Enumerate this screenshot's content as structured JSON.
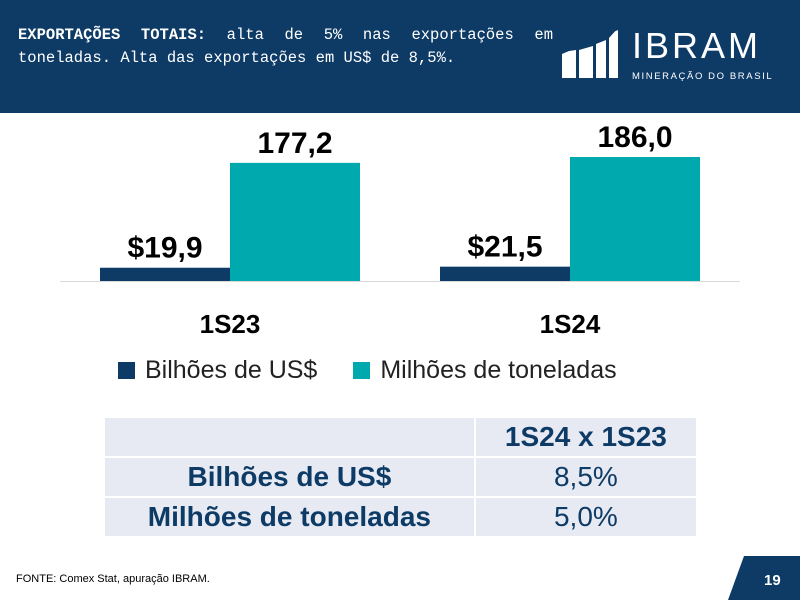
{
  "header": {
    "title_bold": "EXPORTAÇÕES TOTAIS:",
    "title_rest": " alta de 5% nas exportações em toneladas. Alta das exportações em US$ de 8,5%."
  },
  "logo": {
    "name": "IBRAM",
    "subtitle": "MINERAÇÃO DO BRASIL"
  },
  "chart_data": {
    "type": "bar",
    "categories": [
      "1S23",
      "1S24"
    ],
    "series": [
      {
        "name": "Bilhões de US$",
        "values": [
          19.9,
          21.5
        ],
        "labels": [
          "$19,9",
          "$21,5"
        ],
        "color": "#0d3b66"
      },
      {
        "name": "Milhões de toneladas",
        "values": [
          177.2,
          186.0
        ],
        "labels": [
          "177,2",
          "186,0"
        ],
        "color": "#00a9ad"
      }
    ],
    "ylim": [
      0,
      195
    ]
  },
  "comparison_table": {
    "header": "1S24 x 1S23",
    "rows": [
      {
        "label": "Bilhões de US$",
        "value": "8,5%"
      },
      {
        "label": "Milhões de toneladas",
        "value": "5,0%"
      }
    ]
  },
  "footer": {
    "source": "FONTE: Comex Stat, apuração IBRAM.",
    "page": "19"
  },
  "colors": {
    "header_bg": "#0d3b66",
    "teal": "#00a9ad",
    "table_bg": "#e7eaf3"
  }
}
